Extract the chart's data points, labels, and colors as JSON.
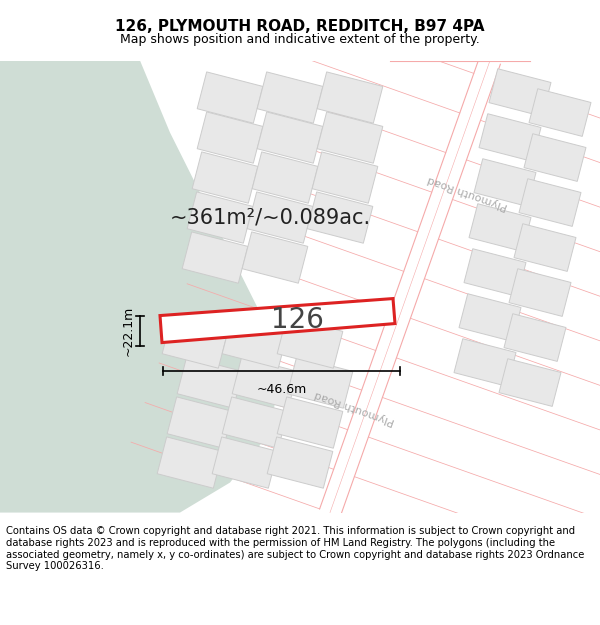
{
  "title": "126, PLYMOUTH ROAD, REDDITCH, B97 4PA",
  "subtitle": "Map shows position and indicative extent of the property.",
  "area_text": "~361m²/~0.089ac.",
  "property_number": "126",
  "dim_width": "~46.6m",
  "dim_height": "~22.1m",
  "footer": "Contains OS data © Crown copyright and database right 2021. This information is subject to Crown copyright and database rights 2023 and is reproduced with the permission of HM Land Registry. The polygons (including the associated geometry, namely x, y co-ordinates) are subject to Crown copyright and database rights 2023 Ordnance Survey 100026316.",
  "bg_map_color": "#f7f7f7",
  "green_area_color": "#cfddd5",
  "plot_fill_color": "#ffffff",
  "plot_edge_color": "#dd2222",
  "road_line_color": "#f5aaaa",
  "road_fill_color": "#f5f5f5",
  "neighbor_fill": "#e8e8e8",
  "neighbor_edge": "#cccccc",
  "title_fontsize": 11,
  "subtitle_fontsize": 9,
  "area_fontsize": 15,
  "number_fontsize": 20,
  "dim_fontsize": 9,
  "footer_fontsize": 7.2,
  "road_label_color": "#aaaaaa",
  "road_label_fontsize": 8
}
